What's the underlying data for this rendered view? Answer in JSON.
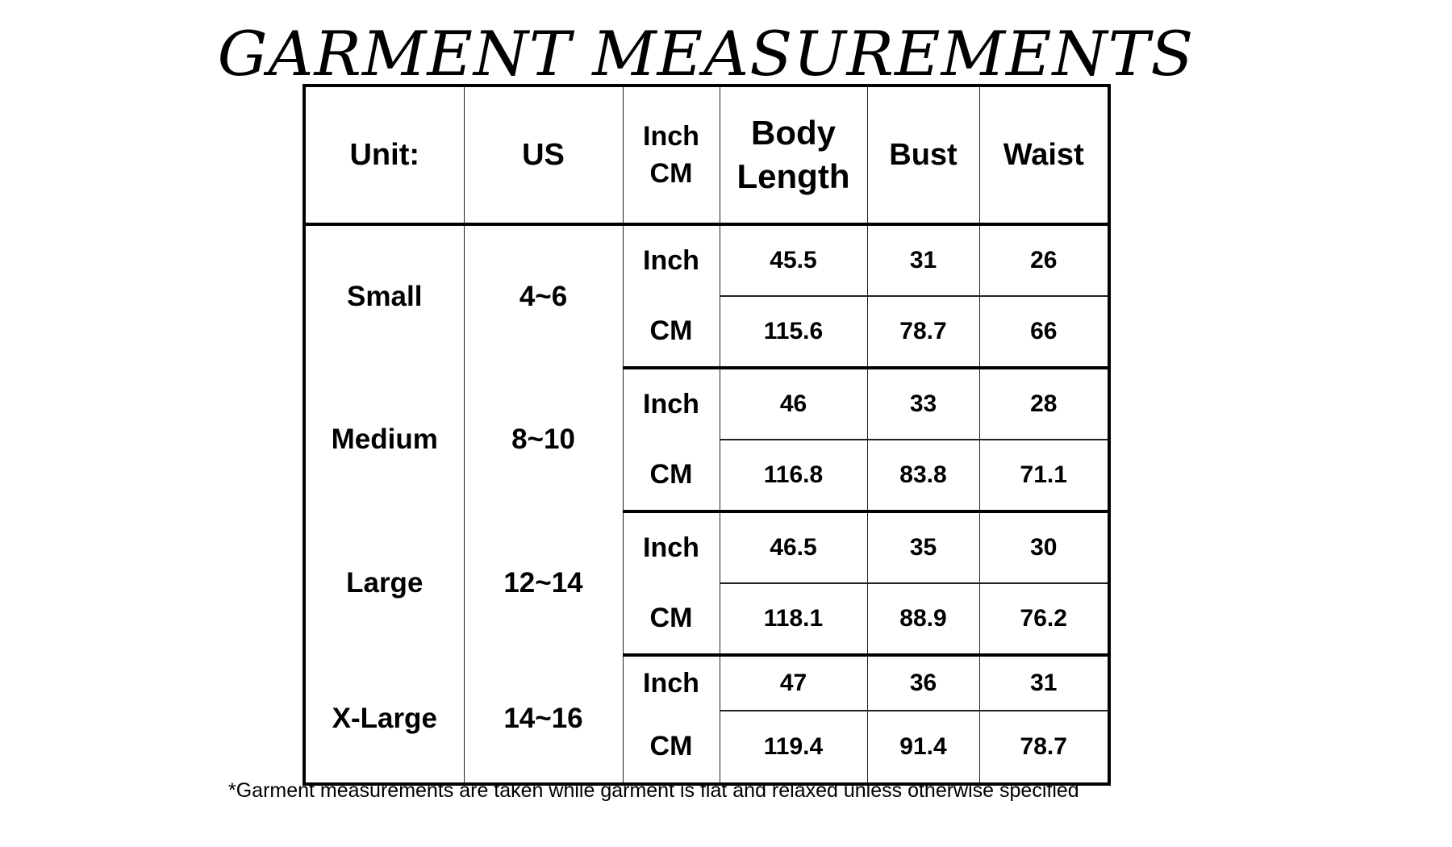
{
  "title": "GARMENT MEASUREMENTS",
  "table": {
    "headers": [
      "Unit:",
      "US",
      "Inch",
      "CM",
      "Body",
      "Length",
      "Bust",
      "Waist"
    ],
    "rows": [
      {
        "size": "Small",
        "us": "4~6",
        "inch": {
          "unit": "Inch",
          "body_length": "45.5",
          "bust": "31",
          "waist": "26"
        },
        "cm": {
          "unit": "CM",
          "body_length": "115.6",
          "bust": "78.7",
          "waist": "66"
        }
      },
      {
        "size": "Medium",
        "us": "8~10",
        "inch": {
          "unit": "Inch",
          "body_length": "46",
          "bust": "33",
          "waist": "28"
        },
        "cm": {
          "unit": "CM",
          "body_length": "116.8",
          "bust": "83.8",
          "waist": "71.1"
        }
      },
      {
        "size": "Large",
        "us": "12~14",
        "inch": {
          "unit": "Inch",
          "body_length": "46.5",
          "bust": "35",
          "waist": "30"
        },
        "cm": {
          "unit": "CM",
          "body_length": "118.1",
          "bust": "88.9",
          "waist": "76.2"
        }
      },
      {
        "size": "X-Large",
        "us": "14~16",
        "inch": {
          "unit": "Inch",
          "body_length": "47",
          "bust": "36",
          "waist": "31"
        },
        "cm": {
          "unit": "CM",
          "body_length": "119.4",
          "bust": "91.4",
          "waist": "78.7"
        }
      }
    ]
  },
  "footnote": "*Garment measurements are taken while garment is flat and relaxed unless otherwise specified"
}
